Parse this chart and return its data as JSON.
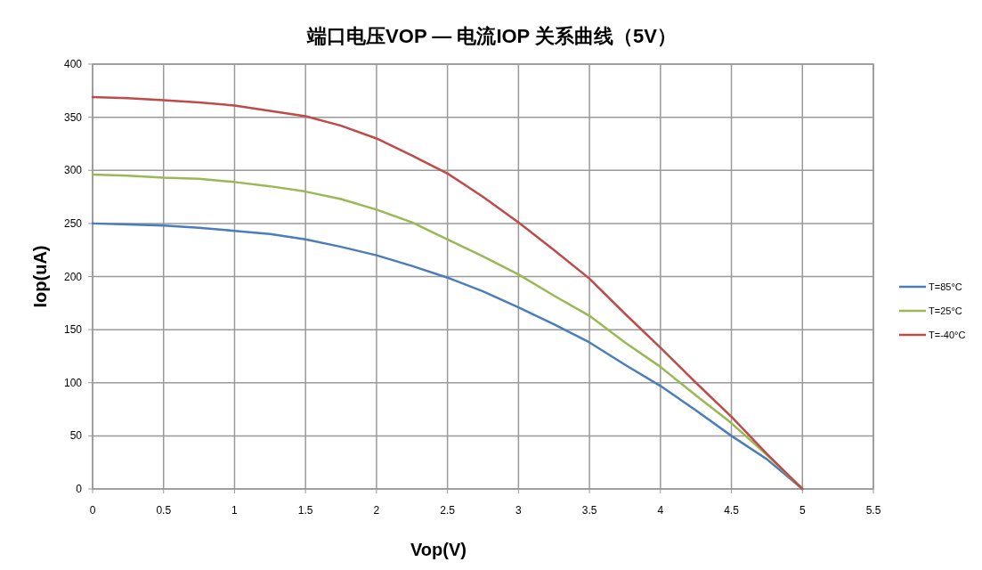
{
  "chart_data": {
    "type": "line",
    "title": "端口电压VOP — 电流IOP 关系曲线（5V）",
    "xlabel": "Vop(V)",
    "ylabel": "Iop(uA)",
    "x": [
      0,
      0.25,
      0.5,
      0.75,
      1,
      1.25,
      1.5,
      1.75,
      2,
      2.25,
      2.5,
      2.75,
      3,
      3.25,
      3.5,
      3.75,
      4,
      4.25,
      4.5,
      4.75,
      5
    ],
    "series": [
      {
        "name": "T=85°C",
        "color": "#4a7ebb",
        "values": [
          250,
          249,
          248,
          246,
          243,
          240,
          235,
          228,
          220,
          210,
          199,
          186,
          171,
          155,
          138,
          117,
          97,
          74,
          50,
          28,
          0
        ]
      },
      {
        "name": "T=25°C",
        "color": "#98b954",
        "values": [
          296,
          295,
          293,
          292,
          289,
          285,
          280,
          273,
          263,
          251,
          235,
          219,
          202,
          182,
          163,
          138,
          115,
          88,
          62,
          32,
          0
        ]
      },
      {
        "name": "T=-40°C",
        "color": "#be4b48",
        "values": [
          369,
          368,
          366,
          364,
          361,
          356,
          351,
          342,
          330,
          314,
          297,
          275,
          251,
          225,
          198,
          165,
          133,
          100,
          68,
          33,
          0
        ]
      }
    ],
    "xlim": [
      0,
      5.5
    ],
    "xticks": [
      0,
      0.5,
      1,
      1.5,
      2,
      2.5,
      3,
      3.5,
      4,
      4.5,
      5,
      5.5
    ],
    "ylim": [
      0,
      400
    ],
    "yticks": [
      0,
      50,
      100,
      150,
      200,
      250,
      300,
      350,
      400
    ],
    "grid": true,
    "legend": "right",
    "marker": "none",
    "line_style": "solid"
  }
}
